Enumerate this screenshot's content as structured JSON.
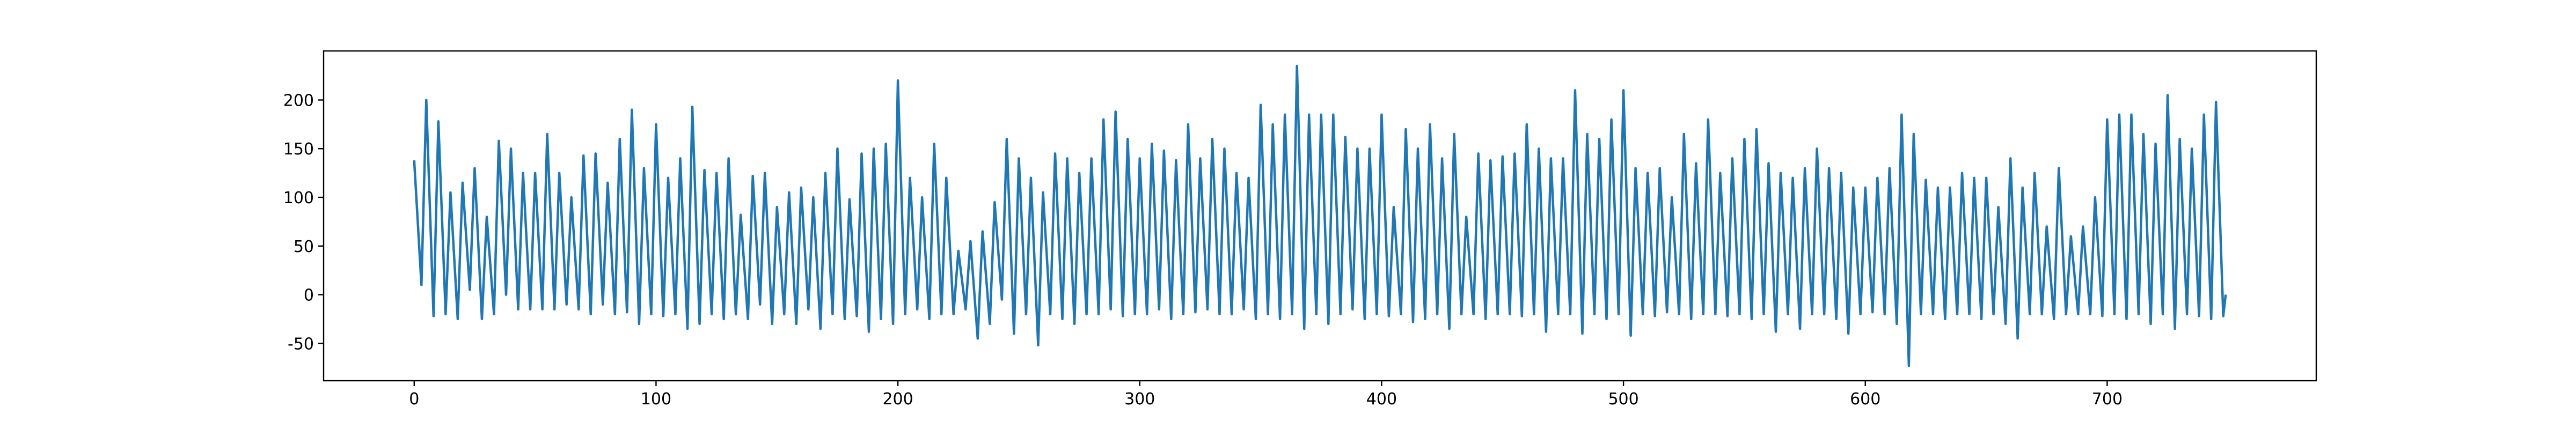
{
  "chart_data": {
    "type": "line",
    "color": "#1f77b4",
    "xlim": [
      -37.45,
      786.45
    ],
    "xticks": [
      0,
      100,
      200,
      300,
      400,
      500,
      600,
      700
    ],
    "ylim": [
      -88.4,
      250.4
    ],
    "yticks": [
      -50,
      0,
      50,
      100,
      150,
      200
    ],
    "x": [
      0,
      3,
      5,
      8,
      10,
      13,
      15,
      18,
      20,
      23,
      25,
      28,
      30,
      33,
      35,
      38,
      40,
      43,
      45,
      48,
      50,
      53,
      55,
      58,
      60,
      63,
      65,
      68,
      70,
      73,
      75,
      78,
      80,
      83,
      85,
      88,
      90,
      93,
      95,
      98,
      100,
      103,
      105,
      108,
      110,
      113,
      115,
      118,
      120,
      123,
      125,
      128,
      130,
      133,
      135,
      138,
      140,
      143,
      145,
      148,
      150,
      153,
      155,
      158,
      160,
      163,
      165,
      168,
      170,
      173,
      175,
      178,
      180,
      183,
      185,
      188,
      190,
      193,
      195,
      198,
      200,
      203,
      205,
      208,
      210,
      213,
      215,
      218,
      220,
      223,
      225,
      228,
      230,
      233,
      235,
      238,
      240,
      243,
      245,
      248,
      250,
      253,
      255,
      258,
      260,
      263,
      265,
      268,
      270,
      273,
      275,
      278,
      280,
      283,
      285,
      288,
      290,
      293,
      295,
      298,
      300,
      303,
      305,
      308,
      310,
      313,
      315,
      318,
      320,
      323,
      325,
      328,
      330,
      333,
      335,
      338,
      340,
      343,
      345,
      348,
      350,
      353,
      355,
      358,
      360,
      363,
      365,
      368,
      370,
      373,
      375,
      378,
      380,
      383,
      385,
      388,
      390,
      393,
      395,
      398,
      400,
      403,
      405,
      408,
      410,
      413,
      415,
      418,
      420,
      423,
      425,
      428,
      430,
      433,
      435,
      438,
      440,
      443,
      445,
      448,
      450,
      453,
      455,
      458,
      460,
      463,
      465,
      468,
      470,
      473,
      475,
      478,
      480,
      483,
      485,
      488,
      490,
      493,
      495,
      498,
      500,
      503,
      505,
      508,
      510,
      513,
      515,
      518,
      520,
      523,
      525,
      528,
      530,
      533,
      535,
      538,
      540,
      543,
      545,
      548,
      550,
      553,
      555,
      558,
      560,
      563,
      565,
      568,
      570,
      573,
      575,
      578,
      580,
      583,
      585,
      588,
      590,
      593,
      595,
      598,
      600,
      603,
      605,
      608,
      610,
      613,
      615,
      618,
      620,
      623,
      625,
      628,
      630,
      633,
      635,
      638,
      640,
      643,
      645,
      648,
      650,
      653,
      655,
      658,
      660,
      663,
      665,
      668,
      670,
      673,
      675,
      678,
      680,
      683,
      685,
      688,
      690,
      693,
      695,
      698,
      700,
      703,
      705,
      708,
      710,
      713,
      715,
      718,
      720,
      723,
      725,
      728,
      730,
      733,
      735,
      738,
      740,
      743,
      745,
      748,
      749
    ],
    "values": [
      138,
      10,
      200,
      -22,
      178,
      -20,
      105,
      -25,
      115,
      5,
      130,
      -25,
      80,
      -20,
      158,
      0,
      150,
      -15,
      125,
      -15,
      125,
      -15,
      165,
      -15,
      125,
      -10,
      100,
      -15,
      143,
      -20,
      145,
      -10,
      115,
      -20,
      160,
      -18,
      190,
      -30,
      130,
      -20,
      175,
      -22,
      120,
      -20,
      140,
      -35,
      193,
      -30,
      128,
      -20,
      125,
      -25,
      140,
      -20,
      82,
      -25,
      122,
      -10,
      125,
      -30,
      90,
      -20,
      105,
      -30,
      110,
      -15,
      100,
      -35,
      125,
      -20,
      150,
      -25,
      98,
      -22,
      145,
      -38,
      150,
      -25,
      155,
      -30,
      220,
      -20,
      120,
      -15,
      100,
      -25,
      155,
      -20,
      120,
      -20,
      45,
      -15,
      55,
      -45,
      65,
      -30,
      95,
      -5,
      160,
      -40,
      140,
      -20,
      120,
      -52,
      105,
      -20,
      145,
      -25,
      140,
      -30,
      125,
      -20,
      140,
      -20,
      180,
      -15,
      188,
      -22,
      160,
      -20,
      140,
      -20,
      155,
      -15,
      148,
      -25,
      138,
      -20,
      175,
      -18,
      140,
      -15,
      160,
      -20,
      150,
      -20,
      125,
      -15,
      120,
      -25,
      195,
      -20,
      175,
      -25,
      185,
      -20,
      235,
      -35,
      185,
      -20,
      185,
      -30,
      185,
      -20,
      162,
      -15,
      150,
      -25,
      150,
      -20,
      185,
      -22,
      90,
      -20,
      170,
      -28,
      150,
      -25,
      175,
      -20,
      140,
      -35,
      165,
      -20,
      80,
      -20,
      145,
      -25,
      138,
      -20,
      142,
      -20,
      145,
      -22,
      175,
      -20,
      150,
      -38,
      140,
      -20,
      140,
      -20,
      210,
      -40,
      165,
      -20,
      160,
      -25,
      180,
      -20,
      210,
      -42,
      130,
      -20,
      125,
      -22,
      130,
      -18,
      100,
      -20,
      165,
      -25,
      135,
      -20,
      180,
      -20,
      125,
      -22,
      140,
      -20,
      160,
      -25,
      170,
      -20,
      135,
      -38,
      125,
      -20,
      120,
      -35,
      130,
      -20,
      150,
      -20,
      130,
      -25,
      125,
      -40,
      110,
      -20,
      110,
      -18,
      120,
      -20,
      130,
      -30,
      185,
      -73,
      165,
      -20,
      118,
      -20,
      110,
      -25,
      110,
      -20,
      125,
      -20,
      120,
      -25,
      120,
      -20,
      90,
      -30,
      140,
      -45,
      110,
      -20,
      125,
      -20,
      70,
      -25,
      130,
      -20,
      60,
      -20,
      70,
      -20,
      100,
      -22,
      180,
      -20,
      185,
      -25,
      185,
      -20,
      165,
      -30,
      155,
      -20,
      205,
      -35,
      160,
      -20,
      150,
      -22,
      185,
      -25,
      198,
      -22,
      0
    ]
  }
}
